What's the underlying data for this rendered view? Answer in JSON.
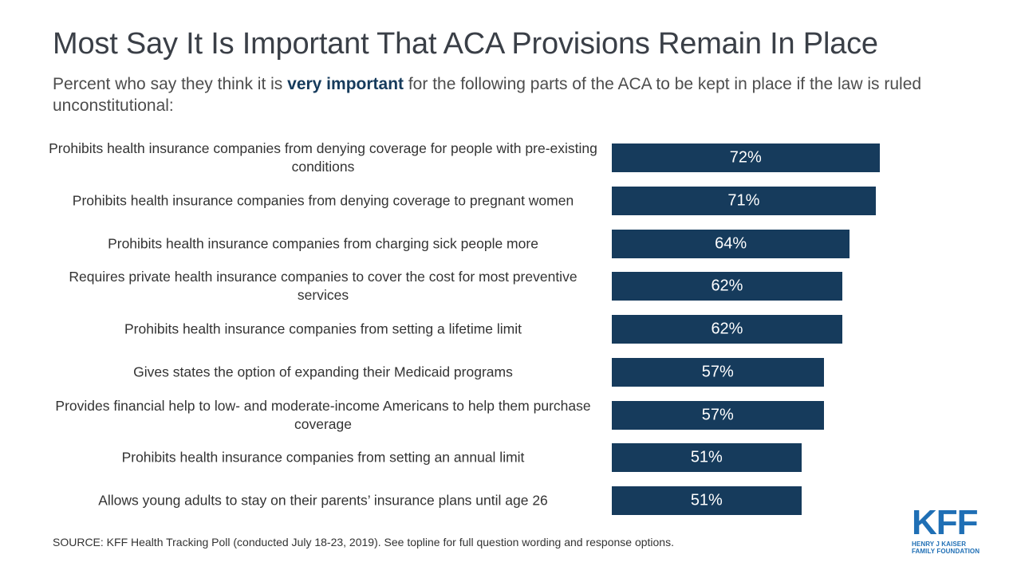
{
  "header": {
    "title": "Most Say It Is Important That ACA Provisions Remain In Place",
    "subtitle_pre": "Percent who say they think it is ",
    "subtitle_emph": "very important",
    "subtitle_post": " for the following parts of the ACA to be kept in place if the law is ruled unconstitutional:"
  },
  "colors": {
    "bar": "#163b5c",
    "emphasis": "#163b5c",
    "logo": "#1f6fb5"
  },
  "chart_data": {
    "type": "bar",
    "orientation": "horizontal",
    "categories": [
      "Prohibits health insurance companies from denying coverage for people with pre-existing conditions",
      "Prohibits health insurance companies from denying coverage to pregnant women",
      "Prohibits health insurance companies from charging sick people more",
      "Requires private health insurance companies to cover the cost for most preventive services",
      "Prohibits health insurance companies from setting a lifetime limit",
      "Gives states the option of expanding their Medicaid programs",
      "Provides financial help to low- and moderate-income Americans to help them purchase coverage",
      "Prohibits health insurance companies from setting an annual limit",
      "Allows young adults to stay on their parents’ insurance plans until age 26"
    ],
    "values": [
      72,
      71,
      64,
      62,
      62,
      57,
      57,
      51,
      51
    ],
    "value_labels": [
      "72%",
      "71%",
      "64%",
      "62%",
      "62%",
      "57%",
      "57%",
      "51%",
      "51%"
    ],
    "title": "",
    "xlabel": "",
    "ylabel": "",
    "xlim": [
      0,
      100
    ],
    "grid": false,
    "legend": "none"
  },
  "footer": {
    "source": "SOURCE: KFF Health Tracking Poll (conducted July 18-23, 2019). See topline for full question wording and response options."
  },
  "logo": {
    "mark": "KFF",
    "line1": "HENRY J KAISER",
    "line2": "FAMILY FOUNDATION"
  }
}
